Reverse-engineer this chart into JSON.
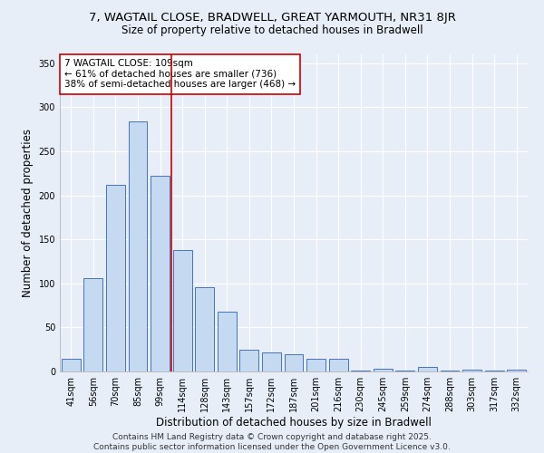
{
  "title_line1": "7, WAGTAIL CLOSE, BRADWELL, GREAT YARMOUTH, NR31 8JR",
  "title_line2": "Size of property relative to detached houses in Bradwell",
  "xlabel": "Distribution of detached houses by size in Bradwell",
  "ylabel": "Number of detached properties",
  "categories": [
    "41sqm",
    "56sqm",
    "70sqm",
    "85sqm",
    "99sqm",
    "114sqm",
    "128sqm",
    "143sqm",
    "157sqm",
    "172sqm",
    "187sqm",
    "201sqm",
    "216sqm",
    "230sqm",
    "245sqm",
    "259sqm",
    "274sqm",
    "288sqm",
    "303sqm",
    "317sqm",
    "332sqm"
  ],
  "values": [
    14,
    106,
    212,
    284,
    222,
    138,
    96,
    68,
    25,
    22,
    20,
    14,
    14,
    1,
    3,
    1,
    5,
    1,
    2,
    1,
    2
  ],
  "bar_color": "#c5d9f0",
  "bar_edge_color": "#4472c4",
  "highlight_line_color": "#cc0000",
  "annotation_text": "7 WAGTAIL CLOSE: 109sqm\n← 61% of detached houses are smaller (736)\n38% of semi-detached houses are larger (468) →",
  "annotation_box_color": "#ffffff",
  "annotation_box_edge": "#cc0000",
  "ylim": [
    0,
    360
  ],
  "yticks": [
    0,
    50,
    100,
    150,
    200,
    250,
    300,
    350
  ],
  "background_color": "#e8eef8",
  "grid_color": "#ffffff",
  "footer_text": "Contains HM Land Registry data © Crown copyright and database right 2025.\nContains public sector information licensed under the Open Government Licence v3.0.",
  "title_fontsize": 9.5,
  "subtitle_fontsize": 8.5,
  "axis_label_fontsize": 8.5,
  "tick_fontsize": 7,
  "annotation_fontsize": 7.5,
  "footer_fontsize": 6.5
}
